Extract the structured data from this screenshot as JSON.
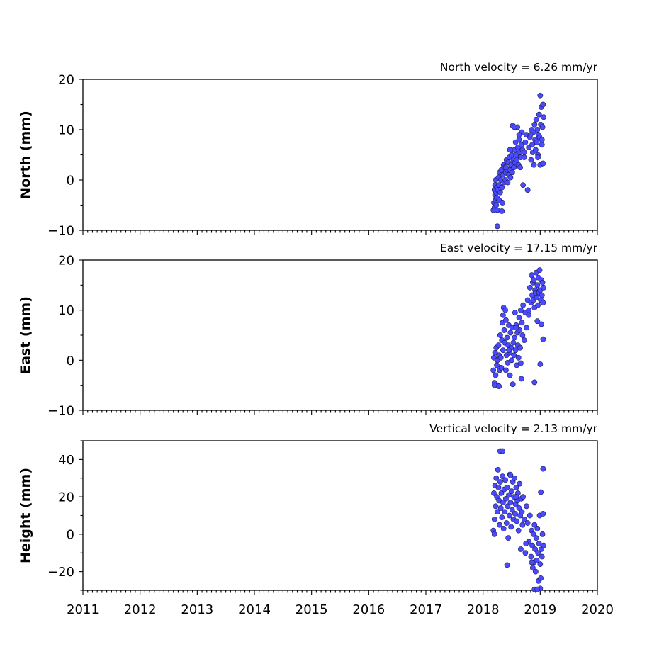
{
  "chart_data": [
    {
      "type": "scatter",
      "title": "North velocity = 6.26 mm/yr",
      "ylabel": "North (mm)",
      "xlim": [
        2011,
        2020
      ],
      "ylim": [
        -10,
        20
      ],
      "yticks": [
        -10,
        0,
        10,
        20
      ],
      "marker_color": "#4a4aff",
      "series": [
        {
          "x": [
            2018.18,
            2018.19,
            2018.2,
            2018.2,
            2018.21,
            2018.21,
            2018.22,
            2018.22,
            2018.23,
            2018.23,
            2018.24,
            2018.24,
            2018.25,
            2018.26,
            2018.27,
            2018.28,
            2018.28,
            2018.29,
            2018.3,
            2018.31,
            2018.32,
            2018.33,
            2018.34,
            2018.35,
            2018.36,
            2018.37,
            2018.38,
            2018.39,
            2018.4,
            2018.41,
            2018.42,
            2018.43,
            2018.44,
            2018.45,
            2018.46,
            2018.47,
            2018.48,
            2018.49,
            2018.5,
            2018.51,
            2018.52,
            2018.53,
            2018.54,
            2018.55,
            2018.56,
            2018.57,
            2018.58,
            2018.59,
            2018.6,
            2018.61,
            2018.62,
            2018.63,
            2018.64,
            2018.65,
            2018.66,
            2018.67,
            2018.68,
            2018.69,
            2018.7,
            2018.72,
            2018.74,
            2018.76,
            2018.78,
            2018.8,
            2018.82,
            2018.84,
            2018.85,
            2018.86,
            2018.87,
            2018.88,
            2018.89,
            2018.9,
            2018.91,
            2018.92,
            2018.93,
            2018.94,
            2018.95,
            2018.96,
            2018.97,
            2018.98,
            2018.99,
            2019.0,
            2019.01,
            2019.02,
            2019.03,
            2019.04,
            2019.05,
            2019.06,
            2018.25,
            2018.33,
            2018.55,
            2018.72,
            2018.83,
            2019.0,
            2019.05,
            2018.4,
            2018.47,
            2018.63,
            2018.96,
            2019.03
          ],
          "y": [
            -6.0,
            -4.5,
            -2.0,
            -5.5,
            -3.0,
            -1.0,
            -4.0,
            0.0,
            -2.5,
            -5.0,
            -1.5,
            -3.5,
            -9.2,
            -2.0,
            0.5,
            -4.0,
            -1.0,
            1.5,
            -2.5,
            0.0,
            2.0,
            -1.5,
            -4.5,
            1.0,
            3.0,
            -0.5,
            2.5,
            0.0,
            1.5,
            4.0,
            2.0,
            -0.5,
            3.5,
            1.0,
            4.5,
            2.0,
            0.5,
            3.0,
            5.0,
            1.5,
            10.8,
            4.0,
            2.5,
            6.0,
            3.5,
            7.5,
            5.0,
            4.0,
            10.5,
            6.5,
            3.0,
            8.0,
            5.5,
            2.5,
            4.5,
            7.0,
            9.5,
            6.0,
            -1.0,
            5.5,
            7.5,
            9.0,
            -2.0,
            6.5,
            8.5,
            4.0,
            10.0,
            7.0,
            5.5,
            9.5,
            3.0,
            11.0,
            8.0,
            6.0,
            12.0,
            7.5,
            10.0,
            5.0,
            9.0,
            13.0,
            8.5,
            16.8,
            11.0,
            14.5,
            7.0,
            10.5,
            15.0,
            12.5,
            -6.0,
            -6.2,
            10.5,
            4.5,
            9.0,
            3.0,
            3.3,
            2.5,
            6.0,
            9.0,
            4.5,
            8.0
          ]
        }
      ]
    },
    {
      "type": "scatter",
      "title": "East velocity = 17.15 mm/yr",
      "ylabel": "East (mm)",
      "xlim": [
        2011,
        2020
      ],
      "ylim": [
        -10,
        20
      ],
      "yticks": [
        -10,
        0,
        10,
        20
      ],
      "marker_color": "#4a4aff",
      "series": [
        {
          "x": [
            2018.18,
            2018.19,
            2018.2,
            2018.21,
            2018.22,
            2018.23,
            2018.24,
            2018.25,
            2018.26,
            2018.27,
            2018.28,
            2018.29,
            2018.3,
            2018.31,
            2018.32,
            2018.33,
            2018.34,
            2018.35,
            2018.36,
            2018.37,
            2018.38,
            2018.39,
            2018.4,
            2018.41,
            2018.42,
            2018.43,
            2018.44,
            2018.45,
            2018.46,
            2018.47,
            2018.48,
            2018.49,
            2018.5,
            2018.51,
            2018.52,
            2018.53,
            2018.54,
            2018.55,
            2018.56,
            2018.57,
            2018.58,
            2018.59,
            2018.6,
            2018.61,
            2018.62,
            2018.63,
            2018.64,
            2018.65,
            2018.66,
            2018.67,
            2018.68,
            2018.69,
            2018.7,
            2018.72,
            2018.74,
            2018.76,
            2018.78,
            2018.8,
            2018.82,
            2018.84,
            2018.85,
            2018.86,
            2018.87,
            2018.88,
            2018.89,
            2018.9,
            2018.91,
            2018.92,
            2018.93,
            2018.94,
            2018.95,
            2018.96,
            2018.97,
            2018.98,
            2018.99,
            2019.0,
            2019.01,
            2019.02,
            2019.03,
            2019.04,
            2019.05,
            2019.06,
            2018.2,
            2018.28,
            2018.4,
            2018.52,
            2018.66,
            2018.9,
            2019.0,
            2019.05,
            2018.35,
            2018.45,
            2018.58,
            2018.8,
            2018.95,
            2019.02
          ],
          "y": [
            -2.0,
            0.5,
            -4.5,
            1.5,
            -3.0,
            2.5,
            -1.0,
            0.0,
            -5.0,
            3.0,
            1.0,
            -2.0,
            5.0,
            0.5,
            -1.5,
            4.0,
            7.5,
            2.0,
            10.5,
            6.0,
            3.5,
            10.0,
            8.0,
            1.0,
            4.5,
            -0.5,
            3.0,
            7.0,
            1.5,
            -3.0,
            5.5,
            2.5,
            0.0,
            6.5,
            -4.8,
            3.5,
            1.0,
            4.5,
            9.5,
            2.0,
            7.0,
            -1.0,
            5.5,
            3.0,
            0.5,
            8.5,
            6.0,
            2.5,
            10.0,
            -3.7,
            7.5,
            5.0,
            11.0,
            4.0,
            9.5,
            6.5,
            12.0,
            10.0,
            14.5,
            11.5,
            17.0,
            13.0,
            15.5,
            12.0,
            16.0,
            10.5,
            14.0,
            13.5,
            17.5,
            12.5,
            15.0,
            11.0,
            16.5,
            13.5,
            18.0,
            14.0,
            12.0,
            16.0,
            13.0,
            15.5,
            11.5,
            14.5,
            -5.0,
            -5.2,
            -2.0,
            -4.8,
            -0.6,
            -4.4,
            -0.8,
            4.2,
            9.0,
            2.0,
            6.5,
            9.0,
            7.8,
            7.2
          ]
        }
      ]
    },
    {
      "type": "scatter",
      "title": "Vertical velocity = 2.13 mm/yr",
      "ylabel": "Height (mm)",
      "xlim": [
        2011,
        2020
      ],
      "ylim": [
        -30,
        50
      ],
      "yticks": [
        -20,
        0,
        20,
        40
      ],
      "marker_color": "#4a4aff",
      "series": [
        {
          "x": [
            2018.18,
            2018.19,
            2018.2,
            2018.21,
            2018.22,
            2018.23,
            2018.24,
            2018.25,
            2018.26,
            2018.27,
            2018.28,
            2018.29,
            2018.3,
            2018.31,
            2018.32,
            2018.33,
            2018.34,
            2018.35,
            2018.36,
            2018.37,
            2018.38,
            2018.39,
            2018.4,
            2018.41,
            2018.42,
            2018.43,
            2018.44,
            2018.45,
            2018.46,
            2018.47,
            2018.48,
            2018.49,
            2018.5,
            2018.51,
            2018.52,
            2018.53,
            2018.54,
            2018.55,
            2018.56,
            2018.57,
            2018.58,
            2018.59,
            2018.6,
            2018.61,
            2018.62,
            2018.63,
            2018.64,
            2018.65,
            2018.66,
            2018.67,
            2018.68,
            2018.69,
            2018.7,
            2018.72,
            2018.74,
            2018.76,
            2018.78,
            2018.8,
            2018.82,
            2018.84,
            2018.85,
            2018.86,
            2018.87,
            2018.88,
            2018.89,
            2018.9,
            2018.91,
            2018.92,
            2018.93,
            2018.94,
            2018.95,
            2018.96,
            2018.97,
            2018.98,
            2018.99,
            2019.0,
            2019.01,
            2019.02,
            2019.03,
            2019.04,
            2019.05,
            2019.06,
            2018.3,
            2018.34,
            2018.2,
            2018.42,
            2018.9,
            2019.0,
            2019.05,
            2018.95,
            2019.01,
            2018.58,
            2018.75,
            2018.85,
            2018.48
          ],
          "y": [
            2.0,
            22.0,
            8.0,
            26.0,
            15.0,
            30.0,
            20.0,
            12.0,
            34.5,
            25.0,
            18.0,
            5.0,
            28.0,
            14.0,
            22.0,
            9.0,
            31.0,
            17.0,
            3.0,
            24.0,
            12.0,
            29.0,
            19.0,
            6.0,
            25.0,
            15.0,
            -2.0,
            21.0,
            10.0,
            32.0,
            17.0,
            4.0,
            23.0,
            13.0,
            28.0,
            8.0,
            20.0,
            30.0,
            11.0,
            16.0,
            25.0,
            7.0,
            18.0,
            22.0,
            2.0,
            14.0,
            27.0,
            10.0,
            -8.0,
            19.0,
            12.0,
            5.0,
            20.0,
            8.0,
            -10.0,
            15.0,
            6.0,
            -4.0,
            10.0,
            -12.0,
            2.0,
            -6.0,
            -18.0,
            0.0,
            -15.0,
            5.0,
            -8.0,
            -20.0,
            -2.0,
            -14.0,
            3.0,
            -10.0,
            -25.0,
            -5.0,
            10.0,
            -16.0,
            22.5,
            -8.0,
            -12.0,
            0.0,
            11.0,
            -6.0,
            44.5,
            44.5,
            0.0,
            -16.5,
            -29.5,
            -29.0,
            35.0,
            -29.5,
            -23.5,
            20.0,
            -5.0,
            -15.0,
            31.5
          ]
        }
      ]
    }
  ],
  "x_tick_labels": [
    "2011",
    "2012",
    "2013",
    "2014",
    "2015",
    "2016",
    "2017",
    "2018",
    "2019",
    "2020"
  ]
}
